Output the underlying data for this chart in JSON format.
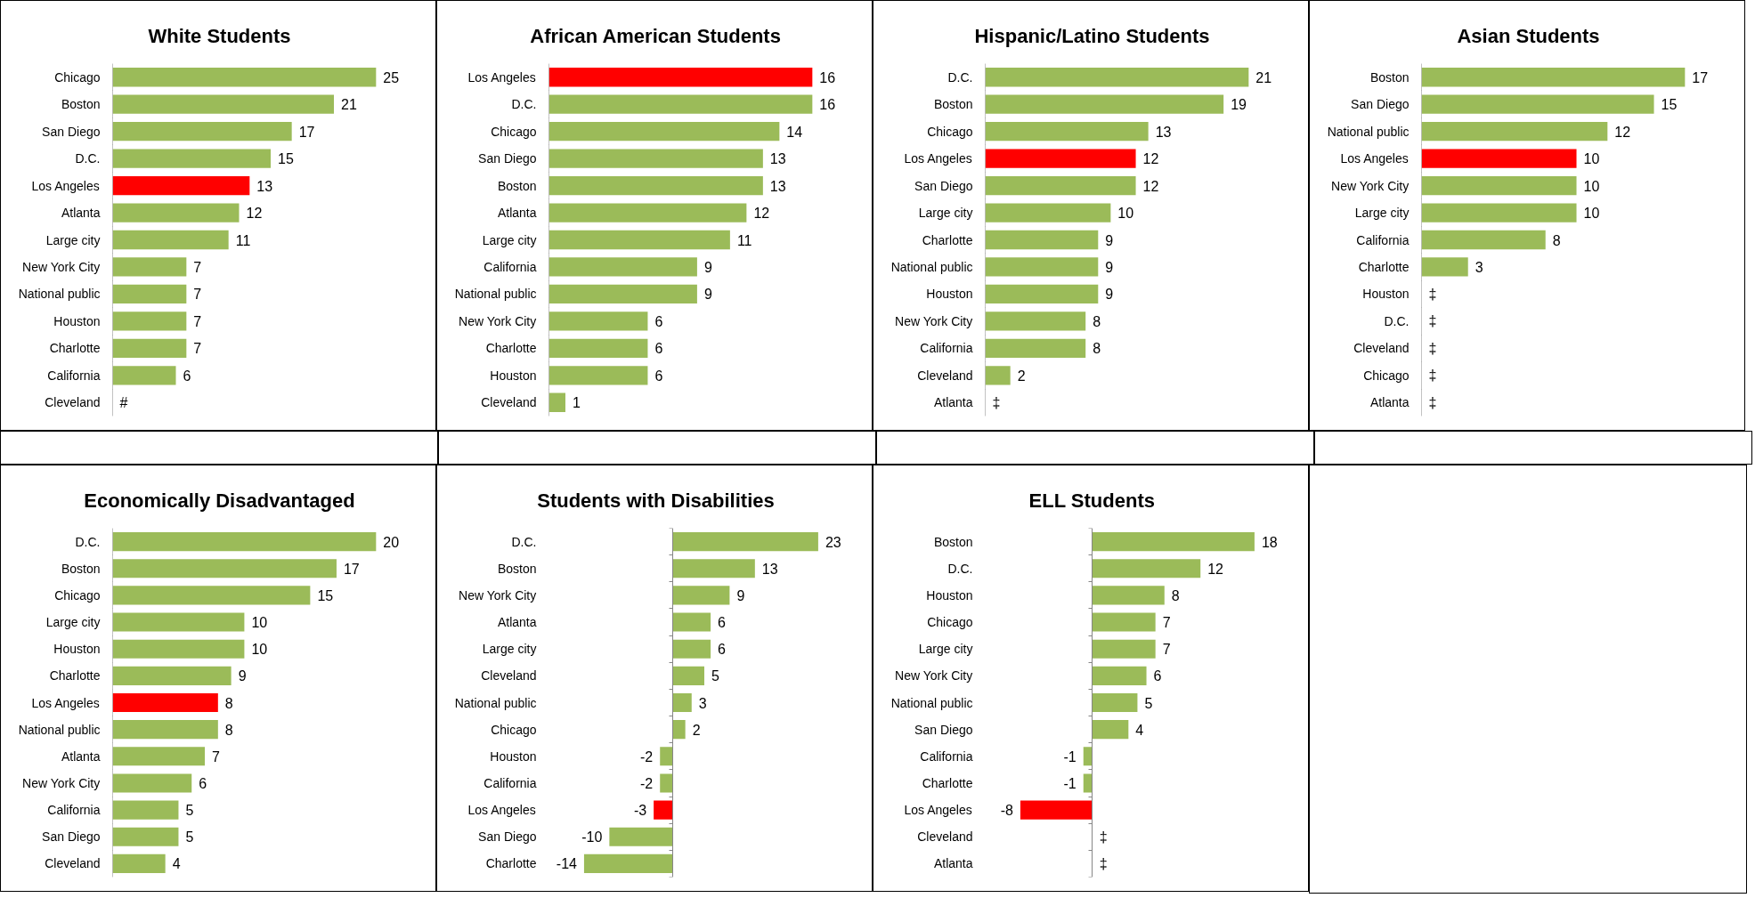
{
  "chart_data": [
    {
      "type": "bar",
      "orientation": "horizontal",
      "title": "White Students",
      "tick_labels": "y",
      "categories": [
        "Chicago",
        "Boston",
        "San Diego",
        "D.C.",
        "Los Angeles",
        "Atlanta",
        "Large city",
        "New York City",
        "National public",
        "Houston",
        "Charlotte",
        "California",
        "Cleveland"
      ],
      "values": [
        25,
        21,
        17,
        15,
        13,
        12,
        11,
        7,
        7,
        7,
        7,
        6,
        null
      ],
      "colors": [
        "#9bbb59",
        "#9bbb59",
        "#9bbb59",
        "#9bbb59",
        "#ff0000",
        "#9bbb59",
        "#9bbb59",
        "#9bbb59",
        "#9bbb59",
        "#9bbb59",
        "#9bbb59",
        "#9bbb59",
        null
      ],
      "value_labels": [
        "25",
        "21",
        "17",
        "15",
        "13",
        "12",
        "11",
        "7",
        "7",
        "7",
        "7",
        "6",
        "#"
      ]
    },
    {
      "type": "bar",
      "orientation": "horizontal",
      "title": "African American Students",
      "tick_labels": "y",
      "categories": [
        "Los Angeles",
        "D.C.",
        "Chicago",
        "San Diego",
        "Boston",
        "Atlanta",
        "Large city",
        "California",
        "National public",
        "New York City",
        "Charlotte",
        "Houston",
        "Cleveland"
      ],
      "values": [
        16,
        16,
        14,
        13,
        13,
        12,
        11,
        9,
        9,
        6,
        6,
        6,
        1
      ],
      "colors": [
        "#ff0000",
        "#9bbb59",
        "#9bbb59",
        "#9bbb59",
        "#9bbb59",
        "#9bbb59",
        "#9bbb59",
        "#9bbb59",
        "#9bbb59",
        "#9bbb59",
        "#9bbb59",
        "#9bbb59",
        "#9bbb59"
      ],
      "data_labels": true
    },
    {
      "type": "bar",
      "orientation": "horizontal",
      "title": "Hispanic/Latino Students",
      "tick_labels": "y",
      "categories": [
        "D.C.",
        "Boston",
        "Chicago",
        "Los Angeles",
        "San Diego",
        "Large city",
        "Charlotte",
        "National public",
        "Houston",
        "New York City",
        "California",
        "Cleveland",
        "Atlanta"
      ],
      "values": [
        21,
        19,
        13,
        12,
        12,
        10,
        9,
        9,
        9,
        8,
        8,
        2,
        null
      ],
      "colors": [
        "#9bbb59",
        "#9bbb59",
        "#9bbb59",
        "#ff0000",
        "#9bbb59",
        "#9bbb59",
        "#9bbb59",
        "#9bbb59",
        "#9bbb59",
        "#9bbb59",
        "#9bbb59",
        "#9bbb59",
        null
      ],
      "value_labels": [
        "21",
        "19",
        "13",
        "12",
        "12",
        "10",
        "9",
        "9",
        "9",
        "8",
        "8",
        "2",
        "‡"
      ]
    },
    {
      "type": "bar",
      "orientation": "horizontal",
      "title": "Asian Students",
      "tick_labels": "y",
      "categories": [
        "Boston",
        "San Diego",
        "National public",
        "Los Angeles",
        "New York City",
        "Large city",
        "California",
        "Charlotte",
        "Houston",
        "D.C.",
        "Cleveland",
        "Chicago",
        "Atlanta"
      ],
      "values": [
        17,
        15,
        12,
        10,
        10,
        10,
        8,
        3,
        null,
        null,
        null,
        null,
        null
      ],
      "colors": [
        "#9bbb59",
        "#9bbb59",
        "#9bbb59",
        "#ff0000",
        "#9bbb59",
        "#9bbb59",
        "#9bbb59",
        "#9bbb59",
        null,
        null,
        null,
        null,
        null
      ],
      "value_labels": [
        "17",
        "15",
        "12",
        "10",
        "10",
        "10",
        "8",
        "3",
        "‡",
        "‡",
        "‡",
        "‡",
        "‡"
      ]
    },
    {
      "type": "bar",
      "orientation": "horizontal",
      "title": "Economically Disadvantaged",
      "tick_labels": "y",
      "categories": [
        "D.C.",
        "Boston",
        "Chicago",
        "Large city",
        "Houston",
        "Charlotte",
        "Los Angeles",
        "National public",
        "Atlanta",
        "New York City",
        "California",
        "San Diego",
        "Cleveland"
      ],
      "values": [
        20,
        17,
        15,
        10,
        10,
        9,
        8,
        8,
        7,
        6,
        5,
        5,
        4
      ],
      "colors": [
        "#9bbb59",
        "#9bbb59",
        "#9bbb59",
        "#9bbb59",
        "#9bbb59",
        "#9bbb59",
        "#ff0000",
        "#9bbb59",
        "#9bbb59",
        "#9bbb59",
        "#9bbb59",
        "#9bbb59",
        "#9bbb59"
      ],
      "data_labels": true
    },
    {
      "type": "bar",
      "orientation": "horizontal",
      "title": "Students with Disabilities",
      "tick_labels": "y",
      "categories": [
        "D.C.",
        "Boston",
        "New York City",
        "Atlanta",
        "Large city",
        "Cleveland",
        "National public",
        "Chicago",
        "Houston",
        "California",
        "Los Angeles",
        "San Diego",
        "Charlotte"
      ],
      "values": [
        23,
        13,
        9,
        6,
        6,
        5,
        3,
        2,
        -2,
        -2,
        -3,
        -10,
        -14
      ],
      "colors": [
        "#9bbb59",
        "#9bbb59",
        "#9bbb59",
        "#9bbb59",
        "#9bbb59",
        "#9bbb59",
        "#9bbb59",
        "#9bbb59",
        "#9bbb59",
        "#9bbb59",
        "#ff0000",
        "#9bbb59",
        "#9bbb59"
      ],
      "data_labels": true
    },
    {
      "type": "bar",
      "orientation": "horizontal",
      "title": "ELL Students",
      "tick_labels": "y",
      "categories": [
        "Boston",
        "D.C.",
        "Houston",
        "Chicago",
        "Large city",
        "New York City",
        "National public",
        "San Diego",
        "California",
        "Charlotte",
        "Los Angeles",
        "Cleveland",
        "Atlanta"
      ],
      "values": [
        18,
        12,
        8,
        7,
        7,
        6,
        5,
        4,
        -1,
        -1,
        -8,
        null,
        null
      ],
      "colors": [
        "#9bbb59",
        "#9bbb59",
        "#9bbb59",
        "#9bbb59",
        "#9bbb59",
        "#9bbb59",
        "#9bbb59",
        "#9bbb59",
        "#9bbb59",
        "#9bbb59",
        "#ff0000",
        null,
        null
      ],
      "value_labels": [
        "18",
        "12",
        "8",
        "7",
        "7",
        "6",
        "5",
        "4",
        "-1",
        "-1",
        "-8",
        "‡",
        "‡"
      ]
    }
  ]
}
